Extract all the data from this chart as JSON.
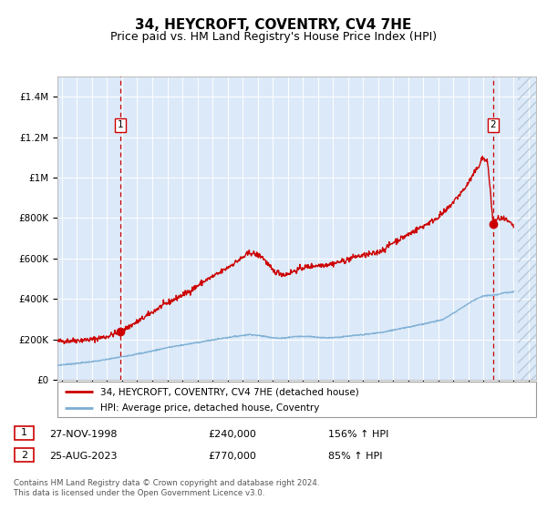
{
  "title": "34, HEYCROFT, COVENTRY, CV4 7HE",
  "subtitle": "Price paid vs. HM Land Registry's House Price Index (HPI)",
  "title_fontsize": 11,
  "subtitle_fontsize": 9,
  "plot_bg_color": "#dce9f8",
  "red_line_color": "#cc0000",
  "blue_line_color": "#7aadd4",
  "marker_color": "#cc0000",
  "dashed_line_color": "#cc0000",
  "ylim": [
    0,
    1500000
  ],
  "xlim_start": 1994.7,
  "xlim_end": 2026.5,
  "yticks": [
    0,
    200000,
    400000,
    600000,
    800000,
    1000000,
    1200000,
    1400000
  ],
  "ytick_labels": [
    "£0",
    "£200K",
    "£400K",
    "£600K",
    "£800K",
    "£1M",
    "£1.2M",
    "£1.4M"
  ],
  "xticks": [
    1995,
    1996,
    1997,
    1998,
    1999,
    2000,
    2001,
    2002,
    2003,
    2004,
    2005,
    2006,
    2007,
    2008,
    2009,
    2010,
    2011,
    2012,
    2013,
    2014,
    2015,
    2016,
    2017,
    2018,
    2019,
    2020,
    2021,
    2022,
    2023,
    2024,
    2025,
    2026
  ],
  "transaction1_x": 1998.9,
  "transaction1_y": 240000,
  "transaction2_x": 2023.65,
  "transaction2_y": 770000,
  "legend_label_red": "34, HEYCROFT, COVENTRY, CV4 7HE (detached house)",
  "legend_label_blue": "HPI: Average price, detached house, Coventry",
  "transaction1_date": "27-NOV-1998",
  "transaction1_price": "£240,000",
  "transaction1_hpi": "156% ↑ HPI",
  "transaction2_date": "25-AUG-2023",
  "transaction2_price": "£770,000",
  "transaction2_hpi": "85% ↑ HPI",
  "footer_text": "Contains HM Land Registry data © Crown copyright and database right 2024.\nThis data is licensed under the Open Government Licence v3.0.",
  "hatch_start": 2025.3
}
